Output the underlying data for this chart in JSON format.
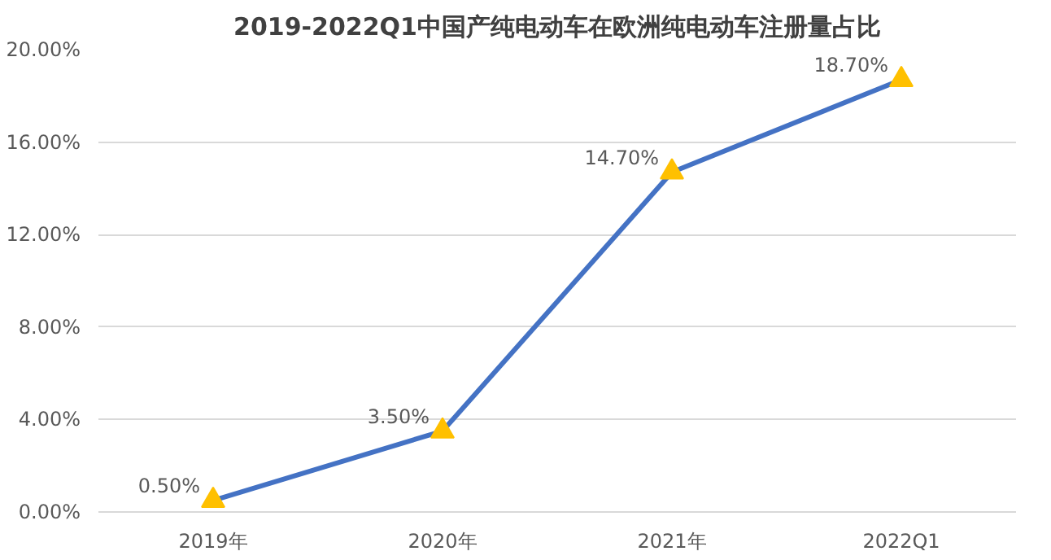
{
  "chart_data": {
    "type": "line",
    "title": "2019-2022Q1中国产纯电动车在欧洲纯电动车注册量占比",
    "categories": [
      "2019年",
      "2020年",
      "2021年",
      "2022Q1"
    ],
    "series": [
      {
        "color": "#4472c4",
        "colors": [
          "#ffc000",
          "#ffc000",
          "#ffc000",
          "#ffc000"
        ],
        "values": [
          0.5,
          3.5,
          14.7,
          18.7
        ],
        "value_labels": [
          "0.50%",
          "3.50%",
          "14.70%",
          "18.70%"
        ]
      }
    ],
    "ylim": [
      0,
      20
    ],
    "yticks": [
      {
        "value": 0,
        "label": "0.00%"
      },
      {
        "value": 4,
        "label": "4.00%"
      },
      {
        "value": 8,
        "label": "8.00%"
      },
      {
        "value": 12,
        "label": "12.00%"
      },
      {
        "value": 16,
        "label": "16.00%"
      },
      {
        "value": 20,
        "label": "20.00%"
      }
    ],
    "grid": "y",
    "marker": "triangle",
    "line_style": "solid"
  }
}
